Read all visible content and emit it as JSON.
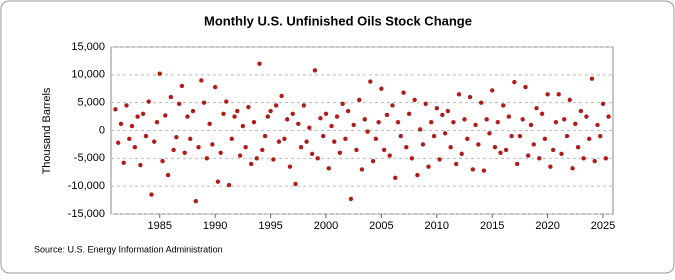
{
  "chart_data": {
    "type": "scatter",
    "title": "Monthly U.S. Unfinished Oils Stock Change",
    "y_label": "Thousand Barrels",
    "source": "Source: U.S. Energy Information Administration",
    "color": "#b01c1c",
    "grid": true,
    "xlim": [
      1980.6,
      2025.9
    ],
    "xticks": [
      1985,
      1990,
      1995,
      2000,
      2005,
      2010,
      2015,
      2020,
      2025
    ],
    "ylim": [
      -15000,
      15000
    ],
    "yticks": [
      {
        "value": 15000,
        "label": "15,000"
      },
      {
        "value": 10000,
        "label": "10,000"
      },
      {
        "value": 5000,
        "label": "5,000"
      },
      0,
      {
        "value": -5000,
        "label": "-5,000"
      },
      {
        "value": -10000,
        "label": "-10,000"
      },
      {
        "value": -15000,
        "label": "-15,000"
      }
    ],
    "x": [
      1981,
      1981.25,
      1981.5,
      1981.75,
      1982,
      1982.25,
      1982.5,
      1982.75,
      1983,
      1983.25,
      1983.5,
      1983.75,
      1984,
      1984.25,
      1984.5,
      1984.75,
      1985,
      1985.25,
      1985.5,
      1985.75,
      1986,
      1986.25,
      1986.5,
      1986.75,
      1987,
      1987.25,
      1987.5,
      1987.75,
      1988,
      1988.25,
      1988.5,
      1988.75,
      1989,
      1989.25,
      1989.5,
      1989.75,
      1990,
      1990.25,
      1990.5,
      1990.75,
      1991,
      1991.25,
      1991.5,
      1991.75,
      1992,
      1992.25,
      1992.5,
      1992.75,
      1993,
      1993.25,
      1993.5,
      1993.75,
      1994,
      1994.25,
      1994.5,
      1994.75,
      1995,
      1995.25,
      1995.5,
      1995.75,
      1996,
      1996.25,
      1996.5,
      1996.75,
      1997,
      1997.25,
      1997.5,
      1997.75,
      1998,
      1998.25,
      1998.5,
      1998.75,
      1999,
      1999.25,
      1999.5,
      1999.75,
      2000,
      2000.25,
      2000.5,
      2000.75,
      2001,
      2001.25,
      2001.5,
      2001.75,
      2002,
      2002.25,
      2002.5,
      2002.75,
      2003,
      2003.25,
      2003.5,
      2003.75,
      2004,
      2004.25,
      2004.5,
      2004.75,
      2005,
      2005.25,
      2005.5,
      2005.75,
      2006,
      2006.25,
      2006.5,
      2006.75,
      2007,
      2007.25,
      2007.5,
      2007.75,
      2008,
      2008.25,
      2008.5,
      2008.75,
      2009,
      2009.25,
      2009.5,
      2009.75,
      2010,
      2010.25,
      2010.5,
      2010.75,
      2011,
      2011.25,
      2011.5,
      2011.75,
      2012,
      2012.25,
      2012.5,
      2012.75,
      2013,
      2013.25,
      2013.5,
      2013.75,
      2014,
      2014.25,
      2014.5,
      2014.75,
      2015,
      2015.25,
      2015.5,
      2015.75,
      2016,
      2016.25,
      2016.5,
      2016.75,
      2017,
      2017.25,
      2017.5,
      2017.75,
      2018,
      2018.25,
      2018.5,
      2018.75,
      2019,
      2019.25,
      2019.5,
      2019.75,
      2020,
      2020.25,
      2020.5,
      2020.75,
      2021,
      2021.25,
      2021.5,
      2021.75,
      2022,
      2022.25,
      2022.5,
      2022.75,
      2023,
      2023.25,
      2023.5,
      2023.75,
      2024,
      2024.25,
      2024.5,
      2024.75,
      2025,
      2025.25,
      2025.5
    ],
    "values": [
      3800,
      -2200,
      1200,
      -5800,
      4500,
      -1500,
      800,
      -3000,
      2500,
      -6200,
      3000,
      -1000,
      5200,
      -11500,
      -2000,
      1500,
      10200,
      -5500,
      2700,
      -8000,
      6000,
      -3500,
      -1200,
      4800,
      8000,
      -4000,
      2500,
      -1500,
      3500,
      -12700,
      -3000,
      9000,
      5000,
      -5000,
      1200,
      -2500,
      7800,
      -9200,
      -4000,
      3000,
      5200,
      -9800,
      -1500,
      2500,
      3500,
      -4500,
      800,
      -3000,
      4200,
      -6000,
      1500,
      -5000,
      12000,
      -3500,
      -1000,
      2500,
      3500,
      -5200,
      4500,
      -2000,
      6200,
      -1500,
      2000,
      -6500,
      3000,
      -9600,
      1200,
      -3000,
      4500,
      -2000,
      500,
      -4200,
      10800,
      -5000,
      2200,
      -1000,
      3000,
      -6800,
      800,
      -2000,
      2500,
      -4000,
      4800,
      -1500,
      3500,
      -12300,
      1000,
      -3500,
      5500,
      -7000,
      2000,
      -200,
      8800,
      -5500,
      -1500,
      1500,
      7500,
      -3500,
      2800,
      -4500,
      4500,
      -8500,
      1500,
      -1000,
      6800,
      -3000,
      3000,
      -5000,
      5500,
      -8000,
      200,
      -2500,
      4800,
      -6500,
      1500,
      -1000,
      4000,
      -5200,
      2800,
      -500,
      3500,
      -3000,
      1500,
      -6000,
      6500,
      -4200,
      2000,
      -1500,
      6000,
      -7000,
      1000,
      -2500,
      5000,
      -7200,
      2000,
      -500,
      7200,
      -3000,
      1500,
      -4000,
      4500,
      -3500,
      2500,
      -1000,
      8700,
      -6000,
      -1000,
      2000,
      7800,
      -4500,
      1000,
      -2500,
      4000,
      -5000,
      3000,
      -1500,
      6500,
      -6500,
      -3500,
      1500,
      6500,
      -4200,
      2000,
      -1000,
      5500,
      -6800,
      1200,
      -3000,
      3500,
      -5000,
      2500,
      -1500,
      9300,
      -5500,
      1000,
      -1000,
      4800,
      -5000,
      2500
    ]
  }
}
